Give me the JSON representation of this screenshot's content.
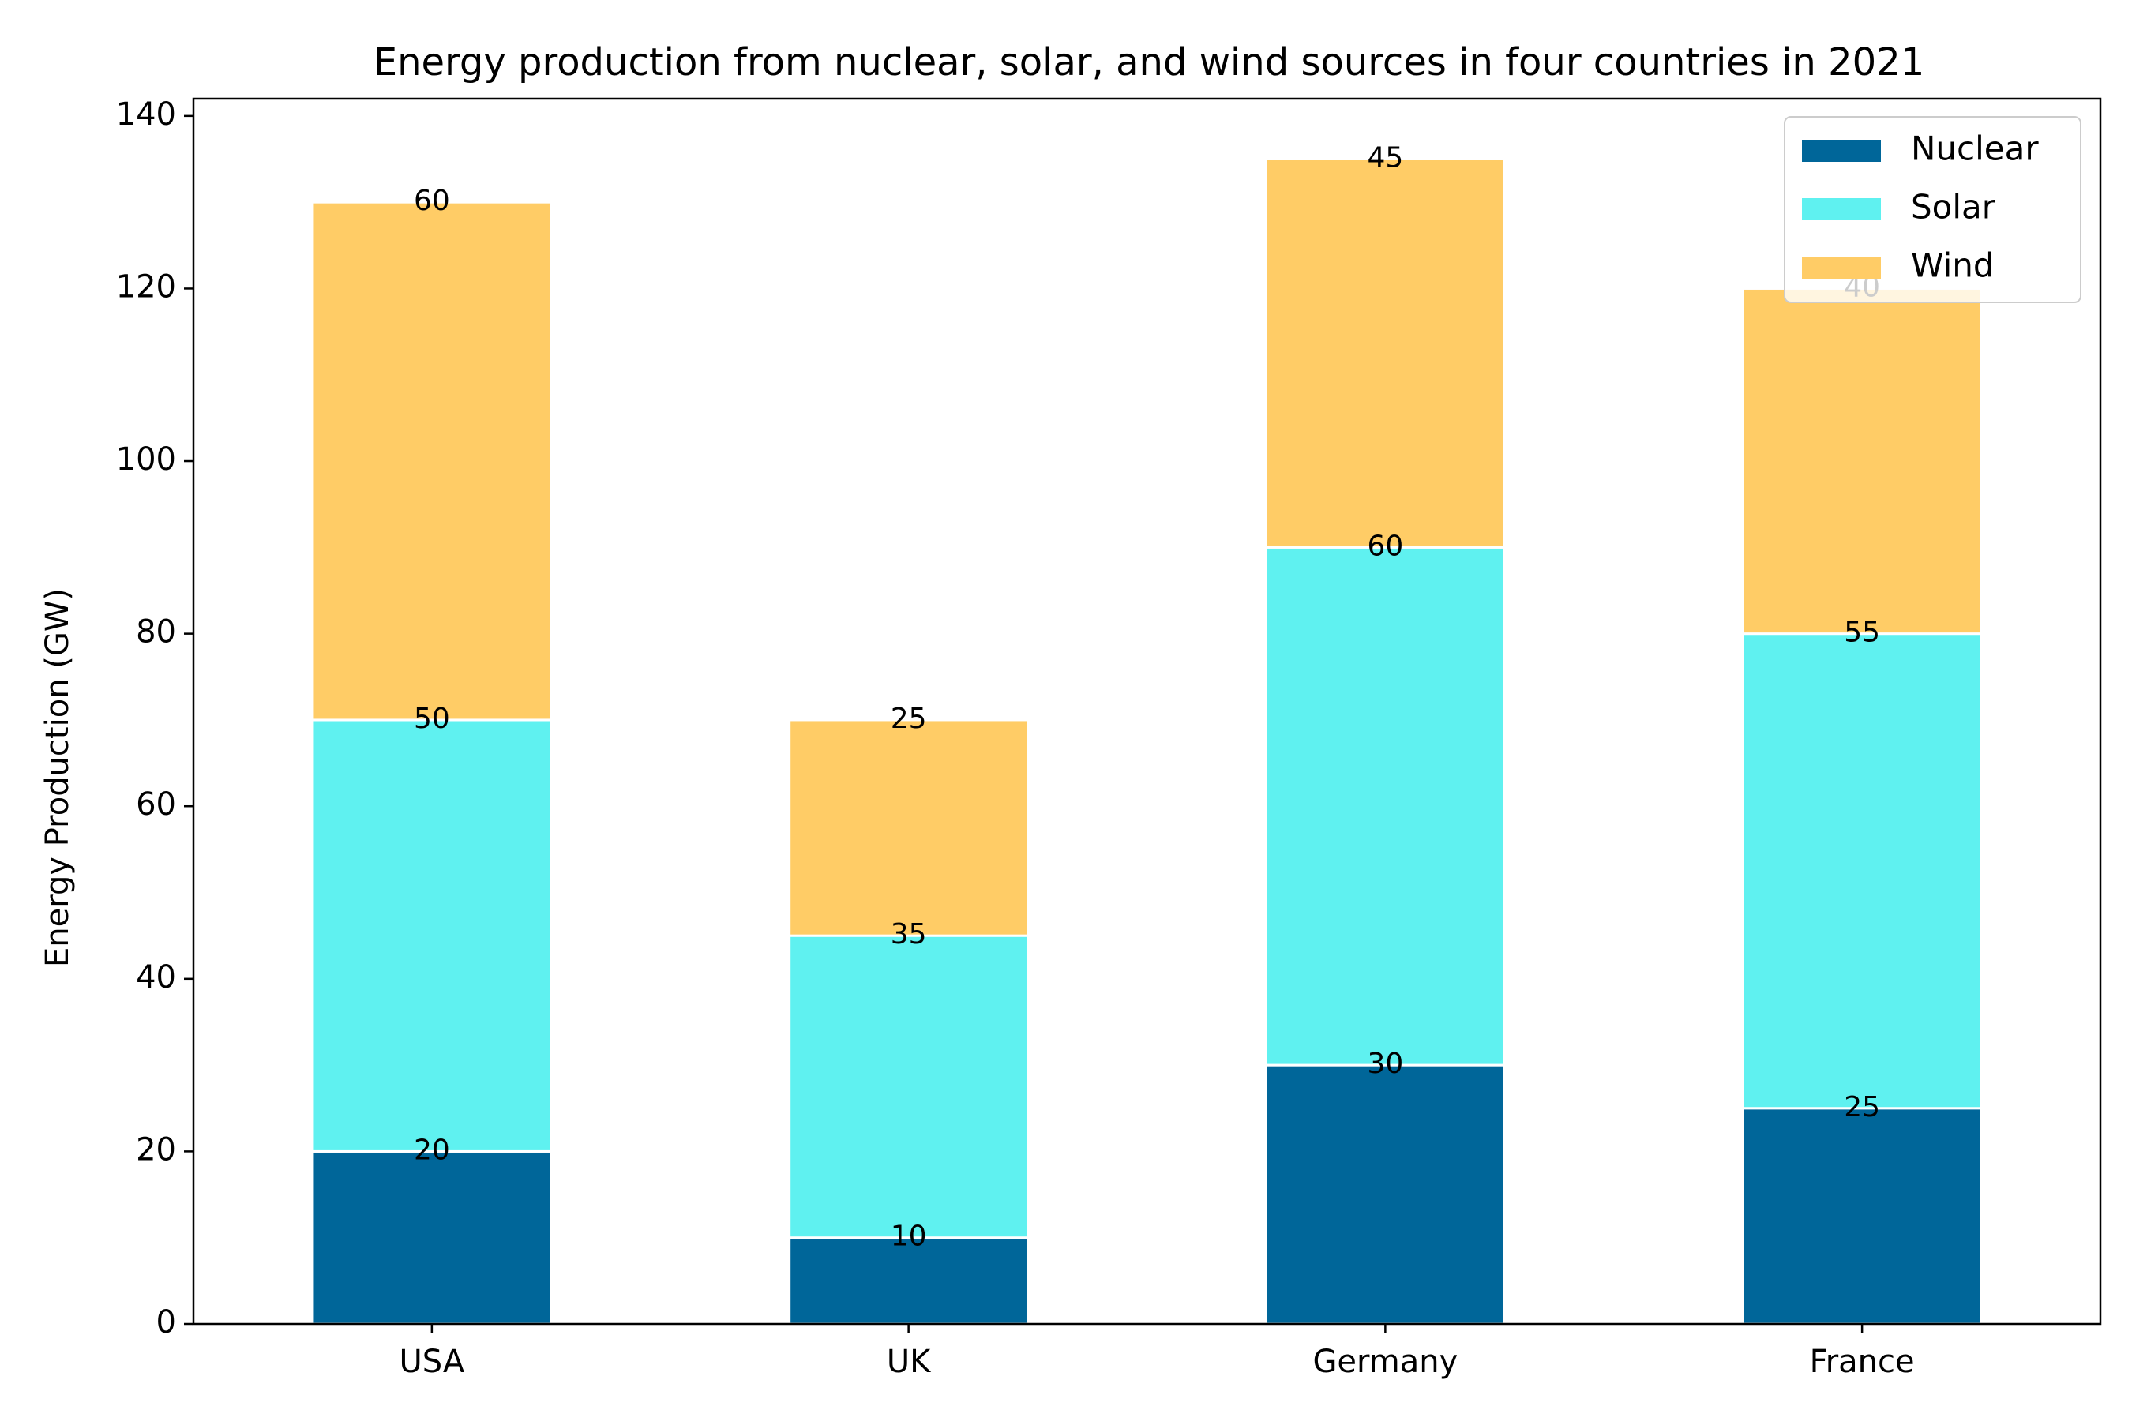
{
  "chart_data": {
    "type": "bar",
    "stacked": true,
    "title": "Energy production from nuclear, solar, and wind sources in four countries in 2021",
    "xlabel": "",
    "ylabel": "Energy Production (GW)",
    "categories": [
      "USA",
      "UK",
      "Germany",
      "France"
    ],
    "series": [
      {
        "name": "Nuclear",
        "color": "#006699",
        "values": [
          20,
          10,
          30,
          25
        ]
      },
      {
        "name": "Solar",
        "color": "#5FF1F0",
        "values": [
          50,
          35,
          60,
          55
        ]
      },
      {
        "name": "Wind",
        "color": "#FFCC66",
        "values": [
          60,
          25,
          45,
          40
        ]
      }
    ],
    "ylim": [
      0,
      142
    ],
    "yticks": [
      0,
      20,
      40,
      60,
      80,
      100,
      120,
      140
    ],
    "grid": false,
    "legend_position": "top-right",
    "bar_edge_color": "#ffffff"
  }
}
